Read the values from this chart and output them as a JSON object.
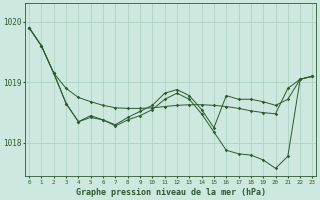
{
  "title": "Graphe pression niveau de la mer (hPa)",
  "background_color": "#cce8df",
  "line_color": "#2d5a2d",
  "grid_color": "#aacfbf",
  "ylim": [
    1017.45,
    1020.3
  ],
  "yticks": [
    1018,
    1019,
    1020
  ],
  "xticks": [
    0,
    1,
    2,
    3,
    4,
    5,
    6,
    7,
    8,
    9,
    10,
    11,
    12,
    13,
    14,
    15,
    16,
    17,
    18,
    19,
    20,
    21,
    22,
    23
  ],
  "series1": [
    1019.9,
    1019.6,
    1019.15,
    1018.9,
    1018.75,
    1018.68,
    1018.62,
    1018.58,
    1018.57,
    1018.57,
    1018.58,
    1018.6,
    1018.62,
    1018.63,
    1018.63,
    1018.62,
    1018.6,
    1018.57,
    1018.53,
    1018.5,
    1018.48,
    1018.9,
    1019.05,
    1019.1
  ],
  "series2": [
    1019.9,
    1019.6,
    1019.15,
    1018.65,
    1018.35,
    1018.45,
    1018.38,
    1018.3,
    1018.42,
    1018.52,
    1018.62,
    1018.82,
    1018.88,
    1018.78,
    1018.55,
    1018.25,
    1018.78,
    1018.72,
    1018.72,
    1018.68,
    1018.62,
    1018.72,
    1019.05,
    1019.1
  ],
  "series3": [
    1019.9,
    1019.6,
    1019.15,
    1018.65,
    1018.35,
    1018.42,
    1018.38,
    1018.28,
    1018.38,
    1018.45,
    1018.55,
    1018.72,
    1018.82,
    1018.72,
    1018.48,
    1018.18,
    1017.88,
    1017.82,
    1017.8,
    1017.72,
    1017.58,
    1017.78,
    1019.05,
    1019.1
  ]
}
